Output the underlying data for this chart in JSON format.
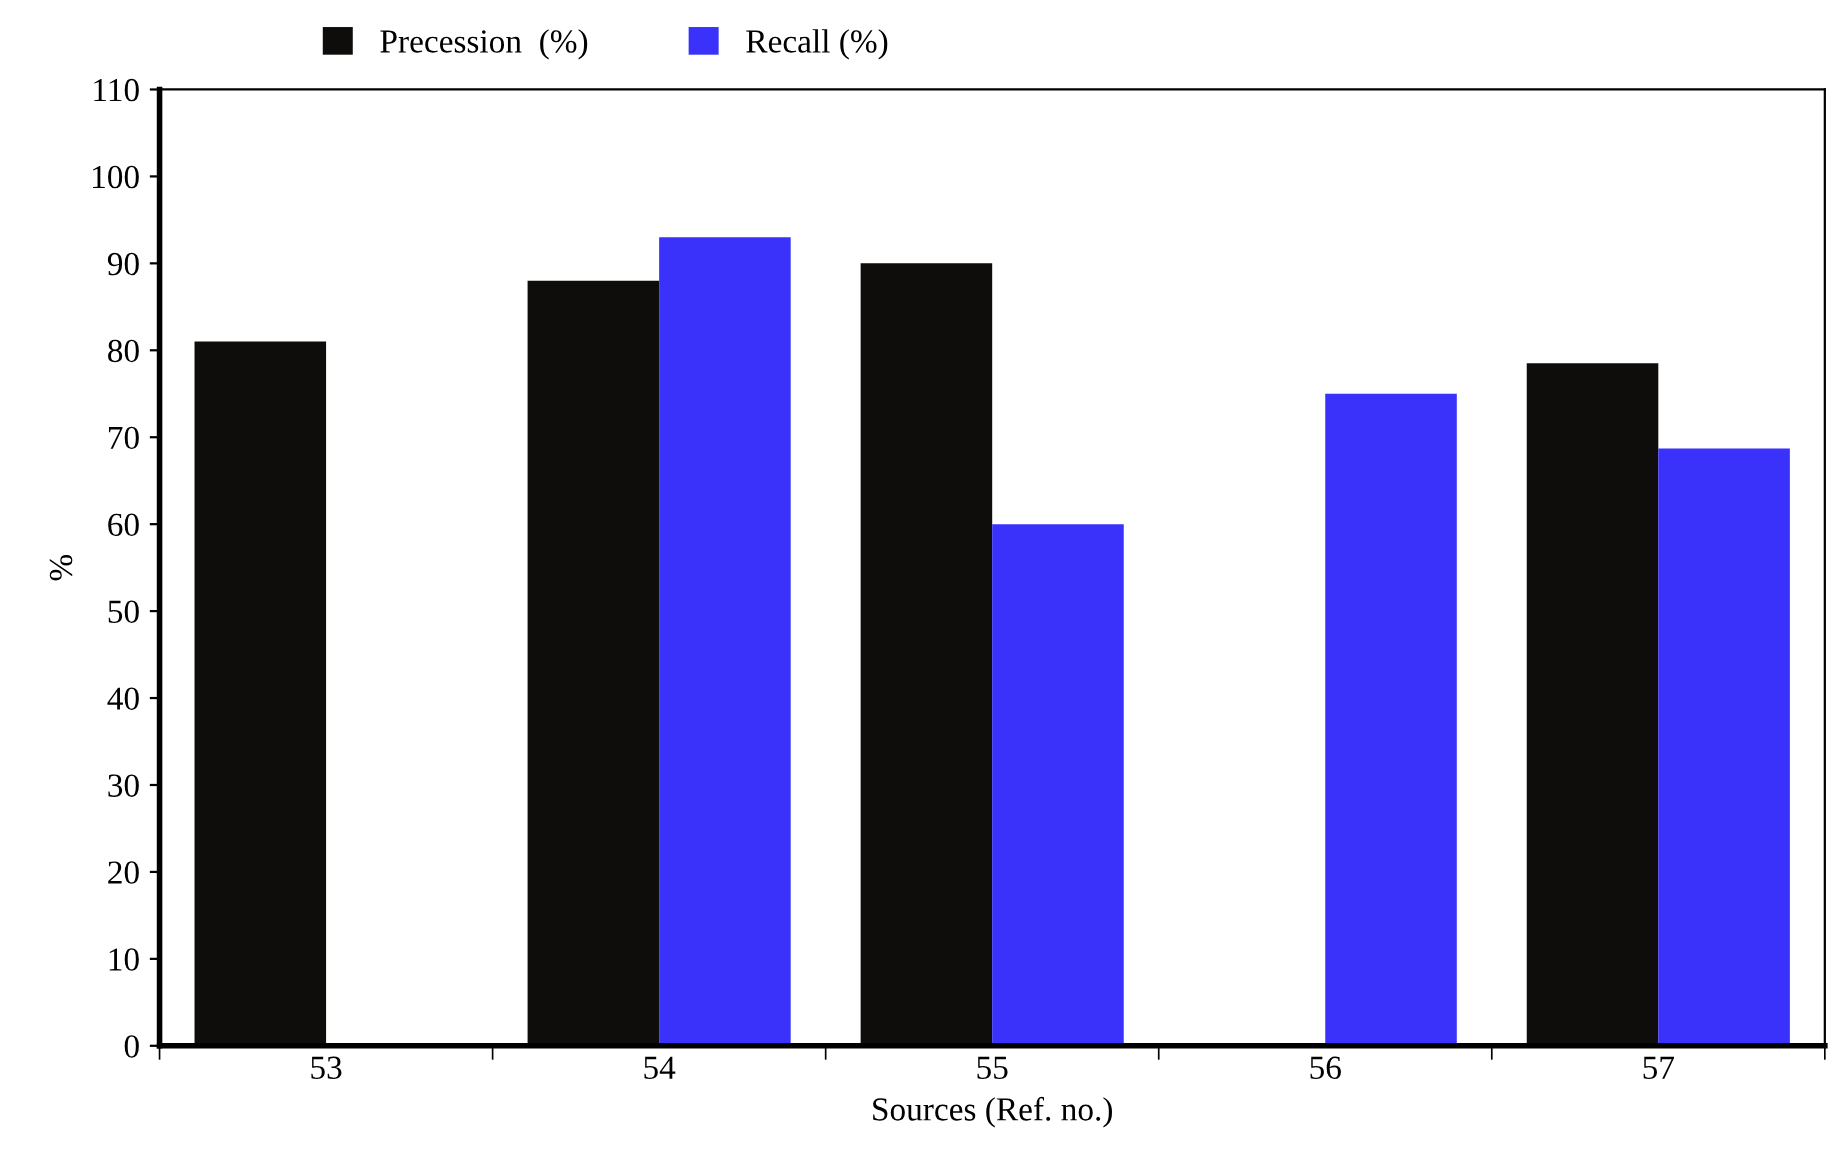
{
  "chart_data": {
    "type": "bar",
    "xlabel": "Sources (Ref. no.)",
    "ylabel": "%",
    "categories": [
      "53",
      "54",
      "55",
      "56",
      "57"
    ],
    "series": [
      {
        "name": "Precession  (%)",
        "color": "#0f0d0b",
        "values": [
          81,
          88,
          90,
          null,
          78.5
        ]
      },
      {
        "name": "Recall (%)",
        "color": "#3a31fb",
        "values": [
          null,
          93,
          60,
          75,
          68.7
        ]
      }
    ],
    "ylim": [
      0,
      110
    ],
    "yticks": [
      0,
      10,
      20,
      30,
      40,
      50,
      60,
      70,
      80,
      90,
      100,
      110
    ],
    "grid": false,
    "legend": "top left"
  }
}
